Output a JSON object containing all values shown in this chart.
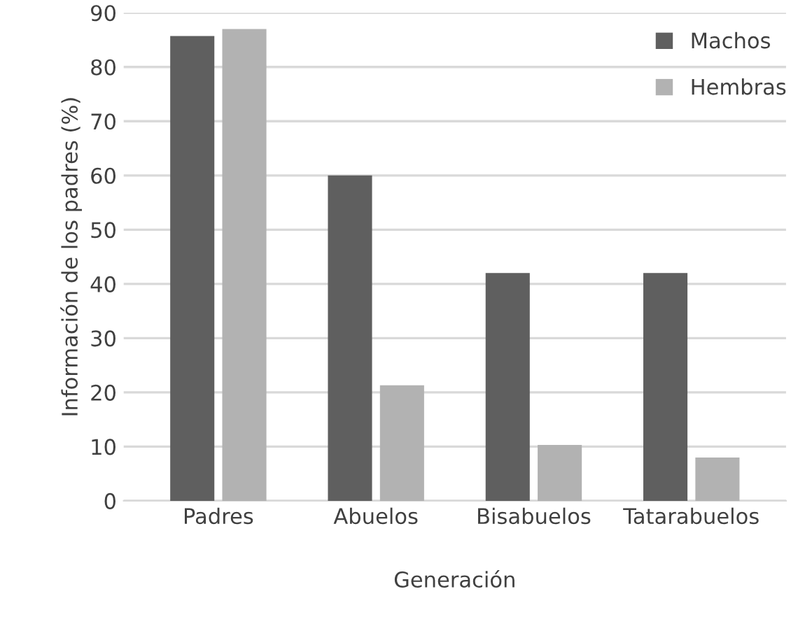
{
  "chart_data": {
    "type": "bar",
    "xlabel": "Generación",
    "ylabel": "Información de los padres (%)",
    "categories": [
      "Padres",
      "Abuelos",
      "Bisabuelos",
      "Tatarabuelos"
    ],
    "series": [
      {
        "name": "Machos",
        "color": "#5f5f5f",
        "values": [
          85.7,
          60,
          42,
          42
        ]
      },
      {
        "name": "Hembras",
        "color": "#b2b2b2",
        "values": [
          87,
          21.3,
          10.3,
          8
        ]
      }
    ],
    "ylim": [
      0,
      90
    ],
    "yticks": [
      0,
      10,
      20,
      30,
      40,
      50,
      60,
      70,
      80,
      90
    ],
    "grid": "y",
    "legend": "top right"
  }
}
